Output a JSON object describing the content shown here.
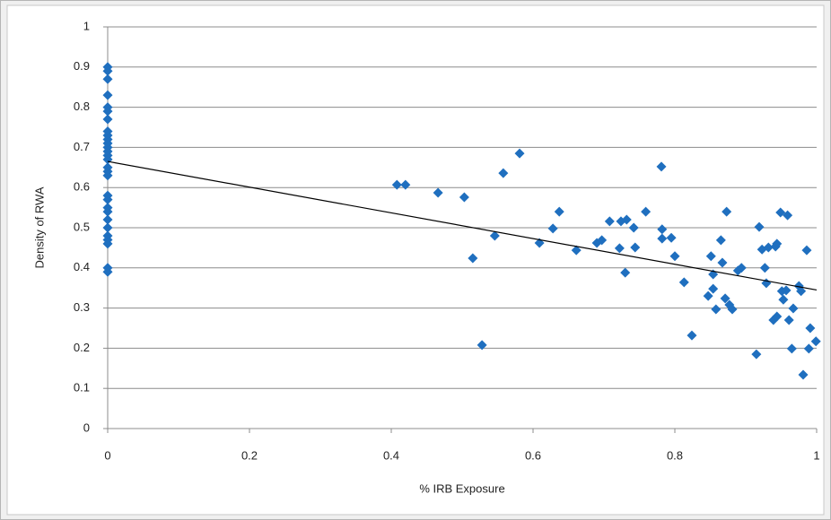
{
  "chart_data": {
    "type": "scatter",
    "x_label": "% IRB Exposure",
    "y_label": "Density of RWA",
    "xlim": [
      0,
      1
    ],
    "ylim": [
      0,
      1
    ],
    "xticks": [
      0,
      0.2,
      0.4,
      0.6,
      0.8,
      1
    ],
    "yticks": [
      0,
      0.1,
      0.2,
      0.3,
      0.4,
      0.5,
      0.6,
      0.7,
      0.8,
      0.9,
      1
    ],
    "grid": true,
    "color": "#1f6fbf",
    "x": [
      0,
      0,
      0,
      0,
      0,
      0,
      0,
      0,
      0,
      0,
      0,
      0,
      0,
      0,
      0,
      0,
      0,
      0,
      0,
      0,
      0,
      0,
      0,
      0,
      0,
      0,
      0,
      0,
      0,
      0.408,
      0.42,
      0.466,
      0.503,
      0.515,
      0.528,
      0.546,
      0.558,
      0.581,
      0.609,
      0.628,
      0.637,
      0.661,
      0.69,
      0.697,
      0.708,
      0.722,
      0.724,
      0.732,
      0.73,
      0.742,
      0.744,
      0.759,
      0.781,
      0.782,
      0.782,
      0.795,
      0.8,
      0.813,
      0.824,
      0.847,
      0.851,
      0.854,
      0.854,
      0.858,
      0.865,
      0.867,
      0.871,
      0.873,
      0.877,
      0.881,
      0.889,
      0.894,
      0.915,
      0.919,
      0.923,
      0.927,
      0.929,
      0.932,
      0.939,
      0.942,
      0.944,
      0.944,
      0.949,
      0.951,
      0.953,
      0.957,
      0.959,
      0.961,
      0.965,
      0.967,
      0.975,
      0.978,
      0.981,
      0.986,
      0.989,
      0.991,
      0.999
    ],
    "values": [
      0.9,
      0.89,
      0.87,
      0.83,
      0.8,
      0.79,
      0.77,
      0.74,
      0.73,
      0.72,
      0.71,
      0.7,
      0.69,
      0.68,
      0.67,
      0.65,
      0.64,
      0.63,
      0.58,
      0.57,
      0.55,
      0.54,
      0.52,
      0.5,
      0.48,
      0.47,
      0.46,
      0.4,
      0.39,
      0.607,
      0.607,
      0.587,
      0.576,
      0.424,
      0.208,
      0.48,
      0.636,
      0.685,
      0.462,
      0.498,
      0.54,
      0.444,
      0.462,
      0.469,
      0.516,
      0.449,
      0.516,
      0.52,
      0.388,
      0.5,
      0.451,
      0.54,
      0.652,
      0.496,
      0.473,
      0.475,
      0.429,
      0.364,
      0.232,
      0.33,
      0.429,
      0.348,
      0.384,
      0.297,
      0.469,
      0.413,
      0.324,
      0.54,
      0.308,
      0.297,
      0.393,
      0.4,
      0.185,
      0.502,
      0.446,
      0.4,
      0.362,
      0.451,
      0.27,
      0.453,
      0.46,
      0.279,
      0.538,
      0.342,
      0.321,
      0.344,
      0.531,
      0.27,
      0.199,
      0.299,
      0.355,
      0.342,
      0.134,
      0.444,
      0.199,
      0.25,
      0.217
    ],
    "trendline": {
      "x": [
        0,
        1
      ],
      "values": [
        0.665,
        0.345
      ],
      "color": "#000000"
    }
  }
}
